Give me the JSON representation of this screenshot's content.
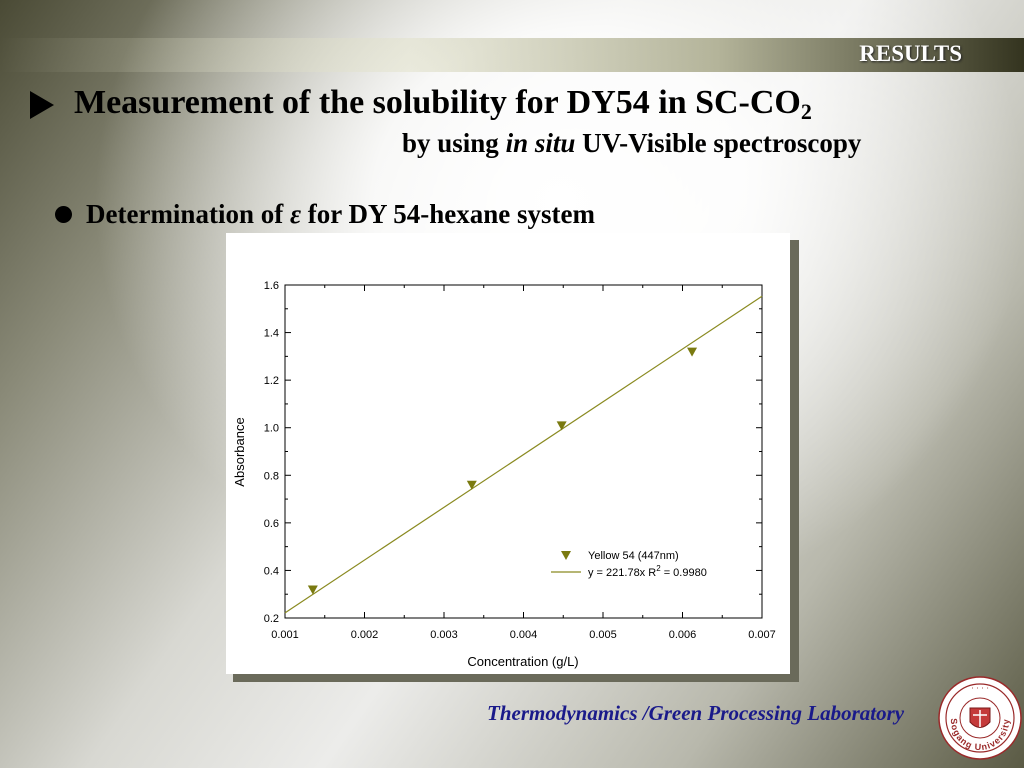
{
  "header": {
    "section_label": "RESULTS"
  },
  "slide": {
    "title_main": "Measurement of the solubility for DY54 in SC-CO",
    "title_sub": "2",
    "subtitle_pre": "by using ",
    "subtitle_italic": "in situ",
    "subtitle_post": " UV-Visible spectroscopy",
    "bullet_pre": "Determination of ",
    "bullet_symbol": "ε",
    "bullet_post": " for DY 54-hexane system"
  },
  "footer": {
    "lab_name": "Thermodynamics /Green Processing Laboratory",
    "seal_text": "Sogang University"
  },
  "colors": {
    "marker": "#7a7a10",
    "fit_line": "#8a8a20",
    "title_text": "#000000",
    "footer_text": "#1a1a8a"
  },
  "chart_data": {
    "type": "scatter",
    "title": "",
    "xlabel": "Concentration (g/L)",
    "ylabel": "Absorbance",
    "xlim": [
      0.001,
      0.007
    ],
    "ylim": [
      0.2,
      1.6
    ],
    "xticks": [
      "0.001",
      "0.002",
      "0.003",
      "0.004",
      "0.005",
      "0.006",
      "0.007"
    ],
    "yticks": [
      "0.2",
      "0.4",
      "0.6",
      "0.8",
      "1.0",
      "1.2",
      "1.4",
      "1.6"
    ],
    "grid": false,
    "legend_position": "bottom-right",
    "series": [
      {
        "name": "Yellow 54 (447nm)",
        "marker": "triangle-down",
        "x": [
          0.00135,
          0.00335,
          0.00448,
          0.00612
        ],
        "y": [
          0.32,
          0.76,
          1.01,
          1.32
        ]
      }
    ],
    "fit": {
      "label": "y = 221.78x  R",
      "r2_superscript": "2",
      "label_tail": " = 0.9980",
      "slope": 221.78,
      "x_range": [
        0.001,
        0.007
      ]
    }
  }
}
